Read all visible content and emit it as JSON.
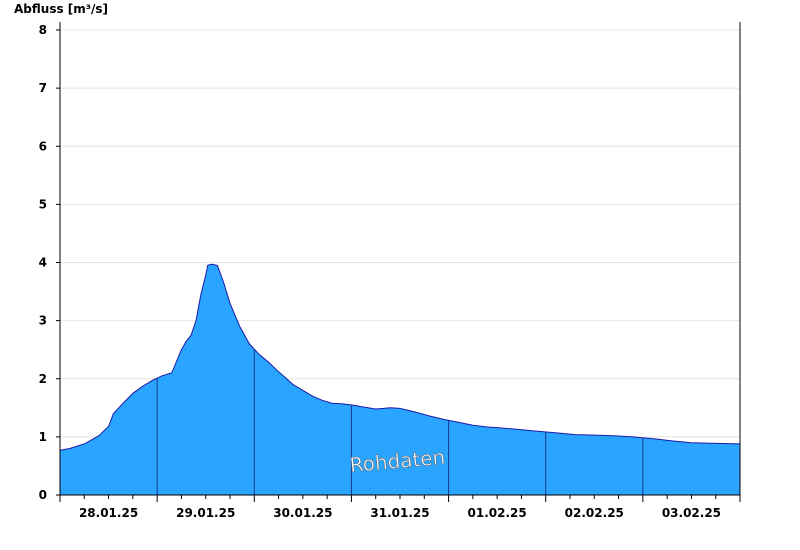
{
  "chart_data": {
    "type": "area",
    "ylabel": "Abfluss [m³/s]",
    "watermark": "Rohdaten",
    "ylim": [
      0,
      8
    ],
    "yticks": [
      "0",
      "1",
      "2",
      "3",
      "4",
      "5",
      "6",
      "7",
      "8"
    ],
    "xlim_days": [
      27.5,
      34.5
    ],
    "xticks": [
      {
        "day": 28,
        "label": "28.01.25"
      },
      {
        "day": 29,
        "label": "29.01.25"
      },
      {
        "day": 30,
        "label": "30.01.25"
      },
      {
        "day": 31,
        "label": "31.01.25"
      },
      {
        "day": 32,
        "label": "01.02.25"
      },
      {
        "day": 33,
        "label": "02.02.25"
      },
      {
        "day": 34,
        "label": "03.02.25"
      }
    ],
    "grid": true,
    "colors": {
      "fill": "#2aa5ff",
      "line": "#1a1aa8",
      "grid": "#e4e4e4"
    },
    "series": [
      {
        "x": [
          27.5,
          27.6,
          27.75,
          27.9,
          28.0,
          28.05,
          28.15,
          28.25,
          28.35,
          28.45,
          28.55,
          28.65,
          28.75,
          28.8,
          28.85,
          28.9,
          28.95,
          29.0,
          29.02,
          29.06,
          29.12,
          29.18,
          29.25,
          29.35,
          29.45,
          29.55,
          29.65,
          29.75,
          29.82,
          29.9,
          30.0,
          30.1,
          30.2,
          30.3,
          30.4,
          30.5,
          30.6,
          30.75,
          30.9,
          31.0,
          31.15,
          31.3,
          31.45,
          31.6,
          31.75,
          31.9,
          32.0,
          32.2,
          32.4,
          32.6,
          32.8,
          33.0,
          33.2,
          33.4,
          33.6,
          33.8,
          34.0,
          34.2,
          34.5
        ],
        "y": [
          0.77,
          0.8,
          0.88,
          1.02,
          1.18,
          1.4,
          1.58,
          1.75,
          1.87,
          1.97,
          2.05,
          2.1,
          2.5,
          2.65,
          2.75,
          3.0,
          3.45,
          3.78,
          3.95,
          3.97,
          3.95,
          3.68,
          3.3,
          2.9,
          2.6,
          2.42,
          2.28,
          2.12,
          2.02,
          1.9,
          1.8,
          1.7,
          1.63,
          1.58,
          1.57,
          1.55,
          1.52,
          1.48,
          1.5,
          1.49,
          1.43,
          1.36,
          1.3,
          1.25,
          1.2,
          1.17,
          1.16,
          1.13,
          1.1,
          1.07,
          1.04,
          1.03,
          1.02,
          1.0,
          0.97,
          0.93,
          0.9,
          0.89,
          0.88
        ]
      }
    ]
  }
}
